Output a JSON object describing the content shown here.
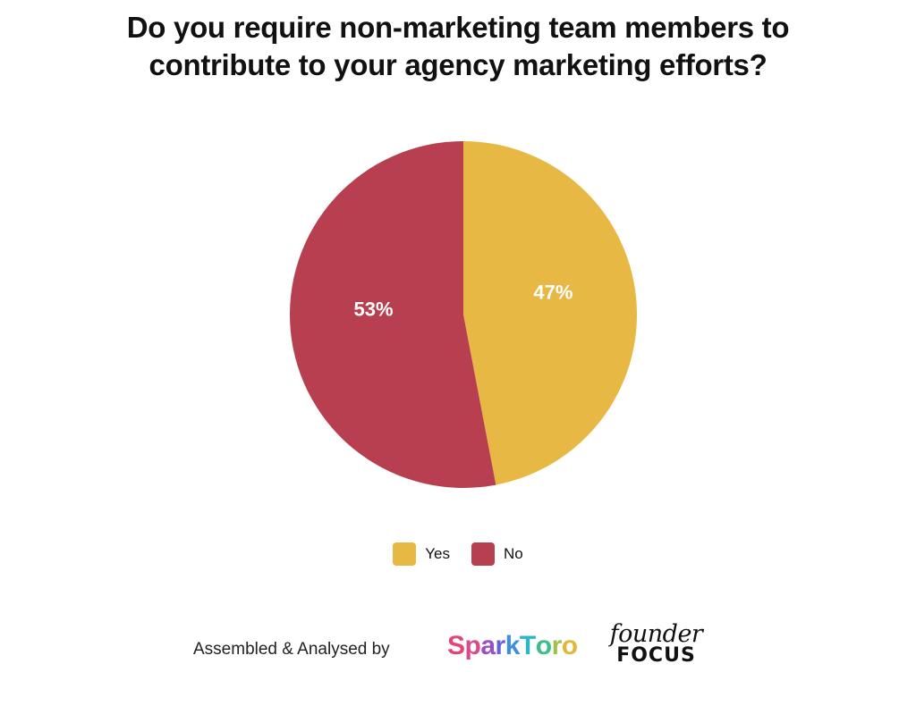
{
  "title": {
    "line1": "Do you require non-marketing team members to",
    "line2": "contribute to your agency marketing efforts?"
  },
  "chart_data": {
    "type": "pie",
    "categories": [
      "Yes",
      "No"
    ],
    "values": [
      47,
      53
    ],
    "labels": [
      "47%",
      "53%"
    ],
    "colors": [
      "#E7B843",
      "#B83F4F"
    ],
    "start_angle": "12 o'clock, clockwise",
    "legend_position": "bottom-center"
  },
  "legend": {
    "items": [
      {
        "label": "Yes",
        "color": "#E7B843"
      },
      {
        "label": "No",
        "color": "#B83F4F"
      }
    ]
  },
  "footer": {
    "credit": "Assembled & Analysed by",
    "spark_logo_text": "SparkToro",
    "spark_colors": [
      "#E3457A",
      "#D94C8C",
      "#9B4FC6",
      "#6A5FD8",
      "#3E8FE0",
      "#2CB7C9",
      "#3DBE8A",
      "#9BC447",
      "#E0B83A"
    ],
    "founder_logo_top": "founder",
    "founder_logo_bottom": "FOCUS"
  }
}
